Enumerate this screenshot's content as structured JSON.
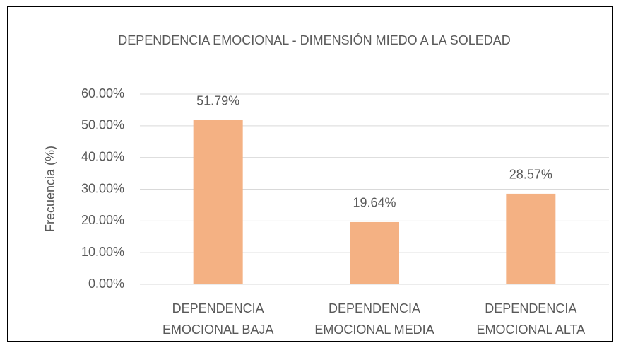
{
  "chart_data": {
    "type": "bar",
    "title": "DEPENDENCIA EMOCIONAL - DIMENSIÓN MIEDO A LA SOLEDAD",
    "y_axis_label": "Frecuencia (%)",
    "categories": [
      "DEPENDENCIA EMOCIONAL BAJA",
      "DEPENDENCIA EMOCIONAL MEDIA",
      "DEPENDENCIA EMOCIONAL ALTA"
    ],
    "values": [
      51.79,
      19.64,
      28.57
    ],
    "value_labels": [
      "51.79%",
      "19.64%",
      "28.57%"
    ],
    "color": "#f4b183",
    "ylim": [
      0,
      60
    ],
    "yticks": [
      {
        "value": 0,
        "label": "0.00%"
      },
      {
        "value": 10,
        "label": "10.00%"
      },
      {
        "value": 20,
        "label": "20.00%"
      },
      {
        "value": 30,
        "label": "30.00%"
      },
      {
        "value": 40,
        "label": "40.00%"
      },
      {
        "value": 50,
        "label": "50.00%"
      },
      {
        "value": 60,
        "label": "60.00%"
      }
    ],
    "grid": true
  }
}
